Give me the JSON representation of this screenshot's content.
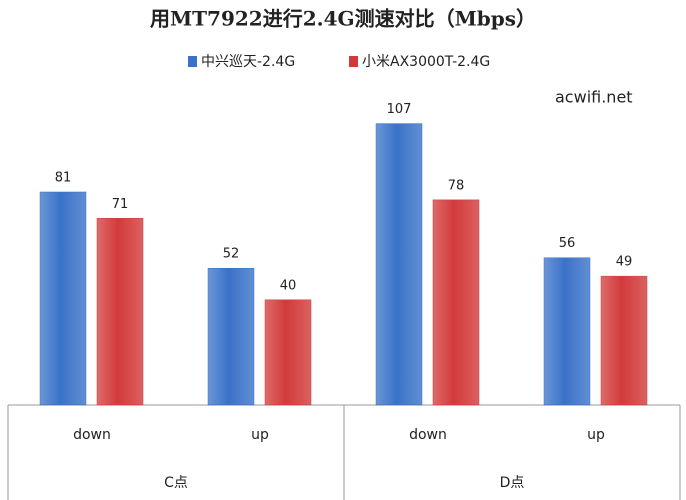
{
  "chart_data": {
    "type": "bar",
    "title": "用MT7922进行2.4G测速对比（Mbps）",
    "annotation": "acwifi.net",
    "categories": [
      "down",
      "up",
      "down",
      "up"
    ],
    "groups": [
      "C点",
      "D点"
    ],
    "series": [
      {
        "name": "中兴巡天-2.4G",
        "color": "#3a72c8",
        "values": [
          81,
          52,
          107,
          56
        ]
      },
      {
        "name": "小米AX3000T-2.4G",
        "color": "#d23a3a",
        "values": [
          71,
          40,
          78,
          49
        ]
      }
    ]
  }
}
